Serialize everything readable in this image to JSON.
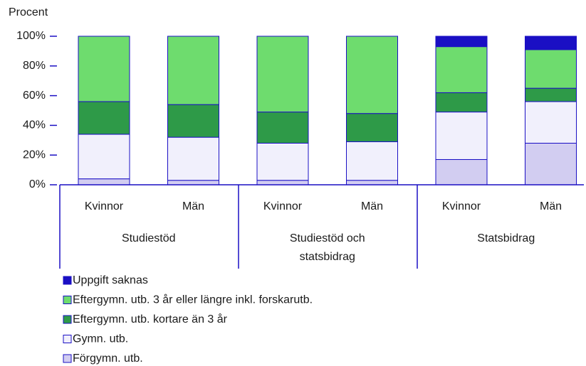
{
  "chart_data": {
    "type": "stacked_bar",
    "ylabel": "Procent",
    "categories": [
      "Kvinnor",
      "Män",
      "Kvinnor",
      "Män",
      "Kvinnor",
      "Män"
    ],
    "groups": [
      {
        "lines": [
          "Studiestöd"
        ],
        "size": 2
      },
      {
        "lines": [
          "Studiestöd och",
          "statsbidrag"
        ],
        "size": 2
      },
      {
        "lines": [
          "Statsbidrag"
        ],
        "size": 2
      }
    ],
    "series": [
      {
        "name": "Förgymn. utb.",
        "color": "#d2cdf1",
        "values": [
          4,
          3,
          3,
          3,
          17,
          28
        ]
      },
      {
        "name": "Gymn. utb.",
        "color": "#f1f0fc",
        "values": [
          30,
          29,
          25,
          26,
          32,
          28
        ]
      },
      {
        "name": "Eftergymn. utb. kortare än 3 år",
        "color": "#2e9a48",
        "values": [
          22,
          22,
          21,
          19,
          13,
          9
        ]
      },
      {
        "name": "Eftergymn. utb. 3 år eller längre inkl. forskarutb.",
        "color": "#6edc6e",
        "values": [
          44,
          46,
          51,
          52,
          31,
          26
        ]
      },
      {
        "name": "Uppgift saknas",
        "color": "#1a0fc4",
        "values": [
          0,
          0,
          0,
          0,
          7,
          9
        ]
      }
    ],
    "ylim": [
      0,
      100
    ],
    "yticks": [
      {
        "value": 0,
        "label": "0%"
      },
      {
        "value": 20,
        "label": "20%"
      },
      {
        "value": 40,
        "label": "40%"
      },
      {
        "value": 60,
        "label": "60%"
      },
      {
        "value": 80,
        "label": "80%"
      },
      {
        "value": 100,
        "label": "100%"
      }
    ],
    "legend": "bottom-left"
  }
}
